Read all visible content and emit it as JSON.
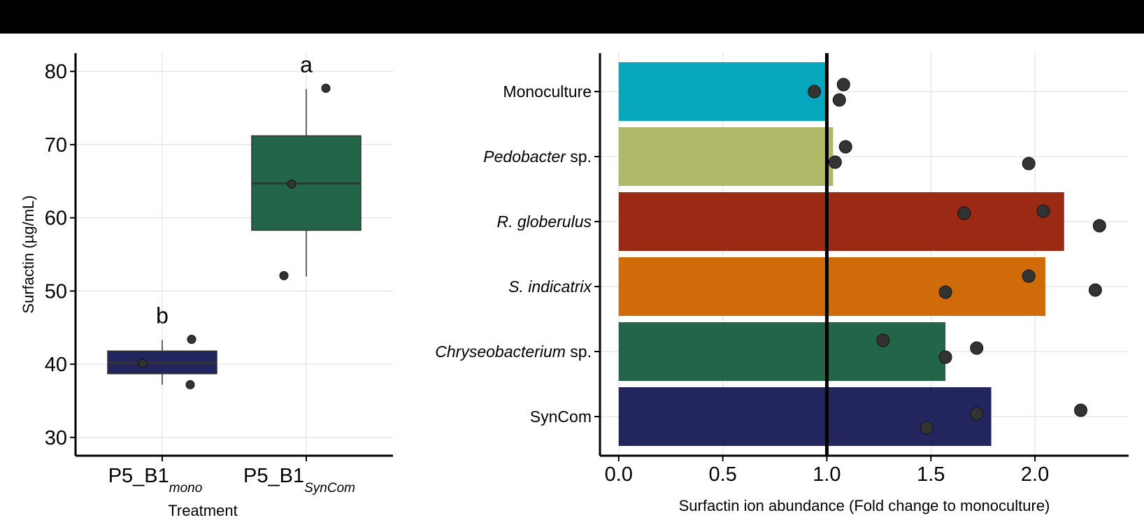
{
  "chart_data": [
    {
      "type": "box",
      "ylabel": "Surfactin (µg/mL)",
      "xlabel": "Treatment",
      "ylim": [
        27.5,
        82.5
      ],
      "yticks": [
        30,
        40,
        50,
        60,
        70,
        80
      ],
      "grid": true,
      "categories": [
        {
          "base": "P5_B1",
          "sub": "mono",
          "color": "#23265e",
          "q1": 38.7,
          "median": 40.2,
          "q3": 41.8,
          "whisker_low": 37.2,
          "whisker_high": 43.3,
          "points": [
            40.1,
            43.4,
            37.2
          ],
          "letter": "b"
        },
        {
          "base": "P5_B1",
          "sub": "SynCom",
          "color": "#226549",
          "q1": 58.3,
          "median": 64.7,
          "q3": 71.2,
          "whisker_low": 52.0,
          "whisker_high": 77.6,
          "points": [
            77.7,
            64.6,
            52.1
          ],
          "letter": "a"
        }
      ]
    },
    {
      "type": "bar",
      "orientation": "horizontal",
      "xlabel": "Surfactin ion abundance (Fold change to monoculture)",
      "xlim": [
        -0.09,
        2.45
      ],
      "xticks": [
        "0.0",
        "0.5",
        "1.0",
        "1.5",
        "2.0"
      ],
      "reference_line": 1.0,
      "grid": true,
      "categories": [
        {
          "label": "Monoculture",
          "italic": "",
          "suffix": "",
          "value": 1.0,
          "color": "#06a6bd",
          "points": [
            0.94,
            1.08,
            1.06
          ]
        },
        {
          "label": "",
          "italic": "Pedobacter",
          "suffix": " sp.",
          "value": 1.03,
          "color": "#aeb866",
          "points": [
            1.04,
            1.09,
            1.97
          ]
        },
        {
          "label": "",
          "italic": "R. globerulus",
          "suffix": "",
          "value": 2.14,
          "color": "#9b2a14",
          "points": [
            1.66,
            2.04,
            2.31
          ]
        },
        {
          "label": "",
          "italic": "S. indicatrix",
          "suffix": "",
          "value": 2.05,
          "color": "#d06b09",
          "points": [
            1.57,
            1.97,
            2.29
          ]
        },
        {
          "label": "",
          "italic": "Chryseobacterium",
          "suffix": " sp.",
          "value": 1.57,
          "color": "#226549",
          "points": [
            1.27,
            1.57,
            1.72
          ]
        },
        {
          "label": "SynCom",
          "italic": "",
          "suffix": "",
          "value": 1.79,
          "color": "#23265e",
          "points": [
            1.48,
            1.72,
            2.22
          ]
        }
      ]
    }
  ]
}
